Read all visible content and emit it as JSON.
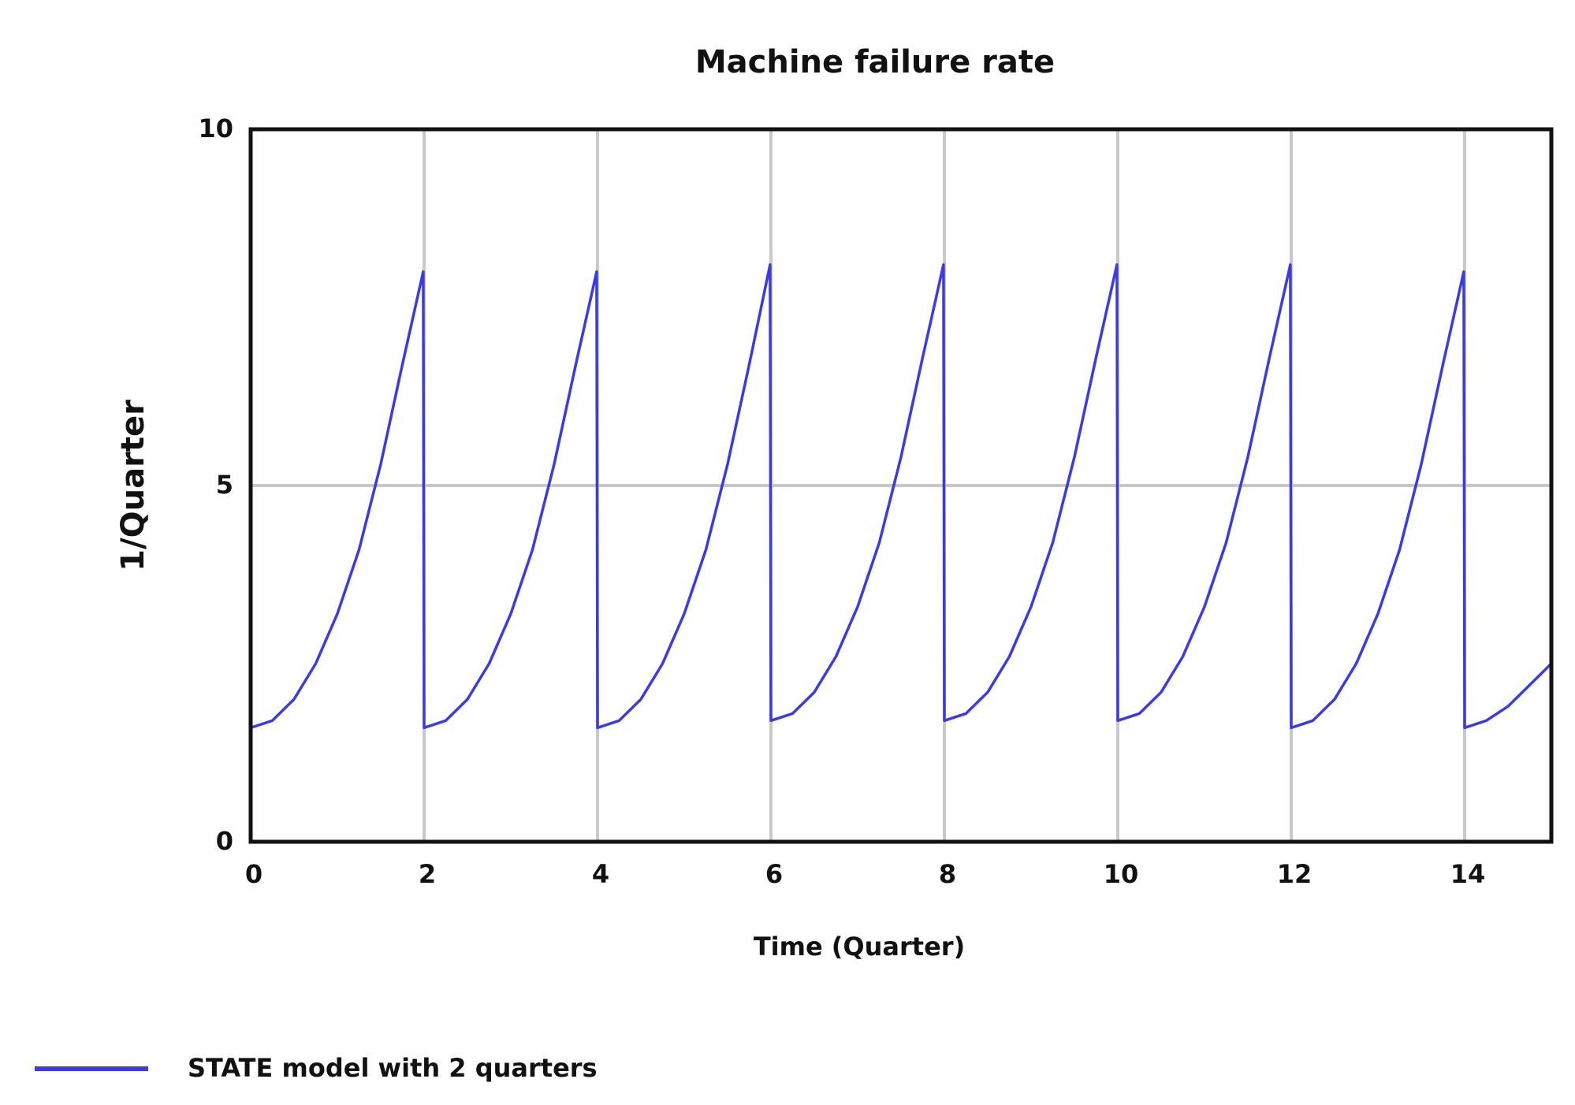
{
  "chart_data": {
    "type": "line",
    "title": "Machine failure rate",
    "xlabel": "Time (Quarter)",
    "ylabel": "1/Quarter",
    "xlim": [
      0,
      15
    ],
    "ylim": [
      0,
      10
    ],
    "x_ticks": [
      0,
      2,
      4,
      6,
      8,
      10,
      12,
      14
    ],
    "y_ticks": [
      0,
      5,
      10
    ],
    "grid": "on",
    "legend": "bottom-left",
    "series": [
      {
        "name": "STATE model with 2 quarters",
        "color": "#3a3ae8",
        "x": [
          0,
          0.25,
          0.5,
          0.75,
          1.0,
          1.25,
          1.5,
          1.75,
          1.99,
          2.0,
          2.25,
          2.5,
          2.75,
          3.0,
          3.25,
          3.5,
          3.75,
          3.99,
          4.0,
          4.25,
          4.5,
          4.75,
          5.0,
          5.25,
          5.5,
          5.75,
          5.99,
          6.0,
          6.25,
          6.5,
          6.75,
          7.0,
          7.25,
          7.5,
          7.75,
          7.99,
          8.0,
          8.25,
          8.5,
          8.75,
          9.0,
          9.25,
          9.5,
          9.75,
          9.99,
          10.0,
          10.25,
          10.5,
          10.75,
          11.0,
          11.25,
          11.5,
          11.75,
          11.99,
          12.0,
          12.25,
          12.5,
          12.75,
          13.0,
          13.25,
          13.5,
          13.75,
          13.99,
          14.0,
          14.25,
          14.5,
          14.75,
          15.0
        ],
        "values": [
          1.6,
          1.7,
          2.0,
          2.5,
          3.2,
          4.1,
          5.3,
          6.7,
          8.0,
          1.6,
          1.7,
          2.0,
          2.5,
          3.2,
          4.1,
          5.3,
          6.7,
          8.0,
          1.6,
          1.7,
          2.0,
          2.5,
          3.2,
          4.1,
          5.3,
          6.7,
          8.1,
          1.7,
          1.8,
          2.1,
          2.6,
          3.3,
          4.2,
          5.4,
          6.8,
          8.1,
          1.7,
          1.8,
          2.1,
          2.6,
          3.3,
          4.2,
          5.4,
          6.8,
          8.1,
          1.7,
          1.8,
          2.1,
          2.6,
          3.3,
          4.2,
          5.4,
          6.8,
          8.1,
          1.6,
          1.7,
          2.0,
          2.5,
          3.2,
          4.1,
          5.3,
          6.7,
          8.0,
          1.6,
          1.7,
          1.9,
          2.2,
          2.5
        ]
      }
    ]
  }
}
